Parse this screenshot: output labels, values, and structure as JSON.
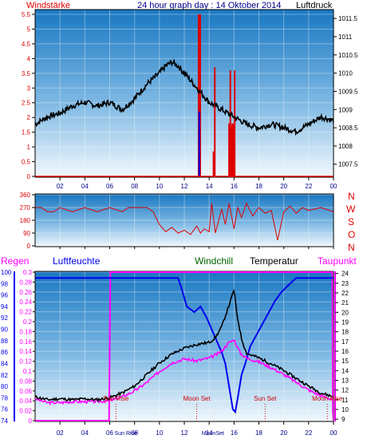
{
  "header": {
    "left": "Windstärke",
    "center": "24 hour graph day : 14 Oktober 2014",
    "right": "Luftdruck"
  },
  "bottom_legend": {
    "regen": "Regen",
    "luftfeuchte": "Luftfeuchte",
    "windchill": "Windchill",
    "temperatur": "Temperatur",
    "taupunkt": "Taupunkt"
  },
  "wind_dir_letters": [
    "N",
    "W",
    "S",
    "O",
    "N"
  ],
  "colors": {
    "black": "#000000",
    "red": "#dd0000",
    "blue": "#0000ee",
    "navy": "#00008b",
    "green": "#006400",
    "magenta": "#ff00ff",
    "sky_top": "#1a78c2",
    "sky_bottom": "#f2f8fd"
  },
  "chart_data": [
    {
      "type": "line",
      "name": "wind-and-pressure",
      "x_ticks": [
        "02",
        "04",
        "06",
        "08",
        "10",
        "12",
        "14",
        "16",
        "18",
        "20",
        "22",
        "00"
      ],
      "y_left_ticks": [
        "0",
        "0.5",
        "1",
        "1.5",
        "2",
        "2.5",
        "3",
        "3.5",
        "4",
        "4.5",
        "5",
        "5.5"
      ],
      "y_left_range": [
        0,
        5.5
      ],
      "y_right_ticks": [
        "1007.5",
        "1008",
        "1008.5",
        "1009",
        "1009.5",
        "1010",
        "1010.5",
        "1011",
        "1011.5"
      ],
      "y_right_range": [
        1007.1,
        1011.7
      ],
      "x_range_hours": [
        0,
        24
      ],
      "pressure": {
        "x": [
          0,
          0.5,
          1,
          2,
          3,
          4,
          5,
          6,
          7,
          8,
          9,
          10,
          10.5,
          11,
          11.5,
          12,
          13,
          14,
          15,
          16,
          17,
          18,
          19,
          20,
          21,
          22,
          23,
          24
        ],
        "y": [
          1008.6,
          1008.7,
          1008.8,
          1008.9,
          1009.1,
          1009.2,
          1009.1,
          1009.2,
          1009.0,
          1009.3,
          1009.7,
          1010.0,
          1010.2,
          1010.3,
          1010.2,
          1010.0,
          1009.6,
          1009.2,
          1009.0,
          1008.8,
          1008.6,
          1008.5,
          1008.6,
          1008.5,
          1008.4,
          1008.6,
          1008.8,
          1008.7
        ]
      },
      "wind_bars": [
        {
          "x": 13.15,
          "value": 5.5,
          "color": "red"
        },
        {
          "x": 13.28,
          "value": 5.5,
          "color": "red"
        },
        {
          "x": 13.2,
          "value": 2.2,
          "color": "blue"
        },
        {
          "x": 14.35,
          "value": 0.85,
          "color": "red"
        },
        {
          "x": 14.45,
          "value": 3.7,
          "color": "red"
        },
        {
          "x": 15.6,
          "value": 1.8,
          "color": "red"
        },
        {
          "x": 15.7,
          "value": 3.6,
          "color": "red"
        },
        {
          "x": 15.78,
          "value": 1.7,
          "color": "red"
        },
        {
          "x": 15.85,
          "value": 1.8,
          "color": "red"
        },
        {
          "x": 15.95,
          "value": 1.8,
          "color": "red"
        },
        {
          "x": 16.05,
          "value": 3.6,
          "color": "red"
        }
      ]
    },
    {
      "type": "line",
      "name": "wind-direction",
      "y_ticks": [
        "0",
        "90",
        "180",
        "270",
        "360"
      ],
      "y_range": [
        0,
        360
      ],
      "x_range_hours": [
        0,
        24
      ],
      "direction": {
        "x": [
          0,
          0.5,
          1,
          1.5,
          2,
          3,
          4,
          5,
          6,
          7,
          7.5,
          8,
          9,
          9.5,
          10,
          10.5,
          11,
          11.5,
          12,
          12.5,
          13,
          13.3,
          13.6,
          14,
          14.2,
          14.5,
          15,
          15.3,
          15.6,
          16,
          16.3,
          16.6,
          17,
          17.5,
          18,
          18.5,
          19,
          19.5,
          20,
          20.5,
          21,
          21.5,
          22,
          23,
          24
        ],
        "y": [
          270,
          270,
          240,
          240,
          270,
          240,
          270,
          240,
          270,
          240,
          270,
          270,
          270,
          240,
          150,
          100,
          130,
          90,
          110,
          80,
          140,
          90,
          120,
          100,
          300,
          90,
          260,
          150,
          300,
          120,
          270,
          200,
          300,
          210,
          270,
          230,
          250,
          40,
          240,
          280,
          230,
          270,
          250,
          270,
          240
        ]
      }
    },
    {
      "type": "line",
      "name": "humidity-temperature",
      "humidity_ticks": [
        "74",
        "76",
        "78",
        "80",
        "82",
        "84",
        "86",
        "88",
        "90",
        "92",
        "94",
        "96",
        "98",
        "100"
      ],
      "humidity_range": [
        74,
        100
      ],
      "rain_ticks": [
        "0",
        "0.02",
        "0.04",
        "0.06",
        "0.08",
        "0.1",
        "0.12",
        "0.14",
        "0.16",
        "0.18",
        "0.2",
        "0.22",
        "0.24",
        "0.26",
        "0.28",
        "0.3"
      ],
      "rain_range": [
        0,
        0.3
      ],
      "temp_ticks": [
        "9",
        "10",
        "11",
        "12",
        "13",
        "14",
        "15",
        "16",
        "17",
        "18",
        "19",
        "20",
        "21",
        "22",
        "23",
        "24"
      ],
      "temp_range": [
        8.6,
        24.3
      ],
      "x_range_hours": [
        0,
        24
      ],
      "temperature": {
        "x": [
          0,
          1,
          2,
          3,
          4,
          5,
          6,
          7,
          8,
          9,
          10,
          11,
          12,
          13,
          14,
          14.5,
          15,
          15.4,
          15.8,
          16.0,
          16.2,
          16.6,
          17,
          18,
          19,
          20,
          21,
          22,
          23,
          24
        ],
        "y": [
          11.3,
          11.0,
          11.1,
          11.0,
          11.1,
          11.0,
          11.2,
          11.7,
          12.4,
          13.6,
          14.8,
          15.7,
          16.3,
          16.7,
          16.9,
          17.4,
          18.5,
          20.0,
          21.5,
          22.4,
          20.0,
          17.3,
          15.8,
          15.3,
          14.7,
          14.0,
          13.2,
          12.4,
          11.7,
          11.3
        ]
      },
      "dewpoint": {
        "x": [
          0,
          1,
          2,
          3,
          4,
          5,
          6,
          7,
          8,
          9,
          10,
          11,
          12,
          13,
          14,
          14.5,
          15,
          15.5,
          16,
          16.5,
          17,
          18,
          19,
          20,
          21,
          22,
          23,
          24
        ],
        "y": [
          11.1,
          10.7,
          10.7,
          10.8,
          10.8,
          10.8,
          10.9,
          11.3,
          11.9,
          12.8,
          13.9,
          14.8,
          15.2,
          15.0,
          15.3,
          15.6,
          16.0,
          16.8,
          17.2,
          15.8,
          15.3,
          14.9,
          14.3,
          13.6,
          12.8,
          12.0,
          11.4,
          11.0
        ]
      },
      "humidity": {
        "x": [
          0,
          5,
          10,
          11.5,
          11.8,
          12.2,
          12.8,
          13.3,
          13.8,
          14.2,
          14.6,
          15.0,
          15.3,
          15.6,
          15.9,
          16.1,
          16.3,
          16.6,
          16.9,
          17.3,
          17.8,
          18.3,
          18.8,
          19.3,
          19.8,
          20.5,
          21,
          22,
          24
        ],
        "y": [
          99,
          99,
          99,
          99,
          97,
          94,
          93,
          94,
          92,
          90,
          88,
          86,
          84,
          80,
          76,
          75.5,
          78,
          82,
          84,
          87,
          89,
          91,
          93,
          95,
          96.5,
          98,
          99,
          99,
          99
        ]
      },
      "rain": {
        "x": [
          0,
          5.95,
          6.05,
          23.9,
          23.95,
          24
        ],
        "y": [
          0,
          0,
          0.3,
          0.3,
          0.02,
          0
        ]
      },
      "events": [
        {
          "x": 6.5,
          "label": "Sun Rise",
          "color": "#cc0000",
          "pos": "top"
        },
        {
          "x": 7.3,
          "label": "Sun Rise",
          "color": "#00008b",
          "pos": "bottom"
        },
        {
          "x": 13.0,
          "label": "Moon Set",
          "color": "#cc0000",
          "pos": "top"
        },
        {
          "x": 14.3,
          "label": "MoonSet",
          "color": "#00008b",
          "pos": "bottom"
        },
        {
          "x": 18.5,
          "label": "Sun Set",
          "color": "#cc0000",
          "pos": "top"
        },
        {
          "x": 23.5,
          "label": "Moon Rise",
          "color": "#cc0000",
          "pos": "top"
        }
      ],
      "x_ticks": [
        "02",
        "04",
        "06",
        "08",
        "10",
        "12",
        "14",
        "16",
        "18",
        "20",
        "22",
        "00"
      ]
    }
  ]
}
